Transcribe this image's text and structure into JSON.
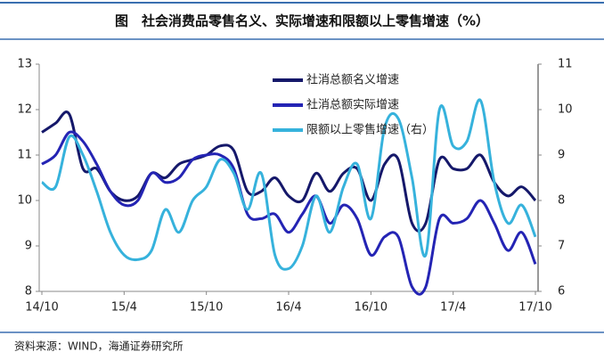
{
  "chart_data": {
    "type": "line",
    "title": "图　社会消费品零售名义、实际增速和限额以上零售增速（%）",
    "source": "资料来源：WIND，海通证券研究所",
    "categories": [
      "14/10",
      null,
      null,
      null,
      null,
      null,
      "15/4",
      null,
      null,
      null,
      null,
      null,
      "15/10",
      null,
      null,
      null,
      null,
      null,
      "16/4",
      null,
      null,
      null,
      null,
      null,
      "16/10",
      null,
      null,
      null,
      null,
      null,
      "17/4",
      null,
      null,
      null,
      null,
      null,
      "17/10"
    ],
    "series": [
      {
        "name": "社消总额名义增速",
        "color": "#15186a",
        "axis": "y",
        "values": [
          11.5,
          11.7,
          11.9,
          10.7,
          10.7,
          10.2,
          10.0,
          10.1,
          10.6,
          10.5,
          10.8,
          10.9,
          11.0,
          11.2,
          11.1,
          10.2,
          10.2,
          10.5,
          10.1,
          10.0,
          10.6,
          10.2,
          10.6,
          10.7,
          10.0,
          10.8,
          10.9,
          9.5,
          9.5,
          10.9,
          10.7,
          10.7,
          11.0,
          10.4,
          10.1,
          10.3,
          10.0
        ]
      },
      {
        "name": "社消总额实际增速",
        "color": "#2424b4",
        "axis": "y",
        "values": [
          10.8,
          11.0,
          11.5,
          11.3,
          10.8,
          10.2,
          9.9,
          10.0,
          10.6,
          10.4,
          10.5,
          10.9,
          11.0,
          11.0,
          10.7,
          9.7,
          9.6,
          9.7,
          9.3,
          9.7,
          10.1,
          9.5,
          9.9,
          9.6,
          8.8,
          9.2,
          9.2,
          8.1,
          8.1,
          9.6,
          9.5,
          9.6,
          10.0,
          9.5,
          8.9,
          9.3,
          8.6
        ]
      },
      {
        "name": "限额以上零售增速（右）",
        "color": "#36b2dc",
        "axis": "y2",
        "values": [
          8.4,
          8.3,
          9.4,
          9.0,
          8.2,
          7.3,
          6.8,
          6.7,
          6.9,
          7.8,
          7.3,
          8.0,
          8.3,
          8.9,
          8.6,
          7.8,
          8.6,
          6.8,
          6.5,
          7.0,
          8.1,
          7.3,
          8.3,
          8.8,
          7.6,
          9.6,
          9.8,
          8.5,
          6.8,
          10.0,
          9.2,
          9.3,
          10.2,
          8.4,
          7.5,
          7.9,
          7.2
        ]
      }
    ],
    "ylim": [
      8,
      13
    ],
    "yticks": [
      8,
      9,
      10,
      11,
      12,
      13
    ],
    "y2lim": [
      6,
      11
    ],
    "y2ticks": [
      6,
      7,
      8,
      9,
      10,
      11
    ]
  }
}
